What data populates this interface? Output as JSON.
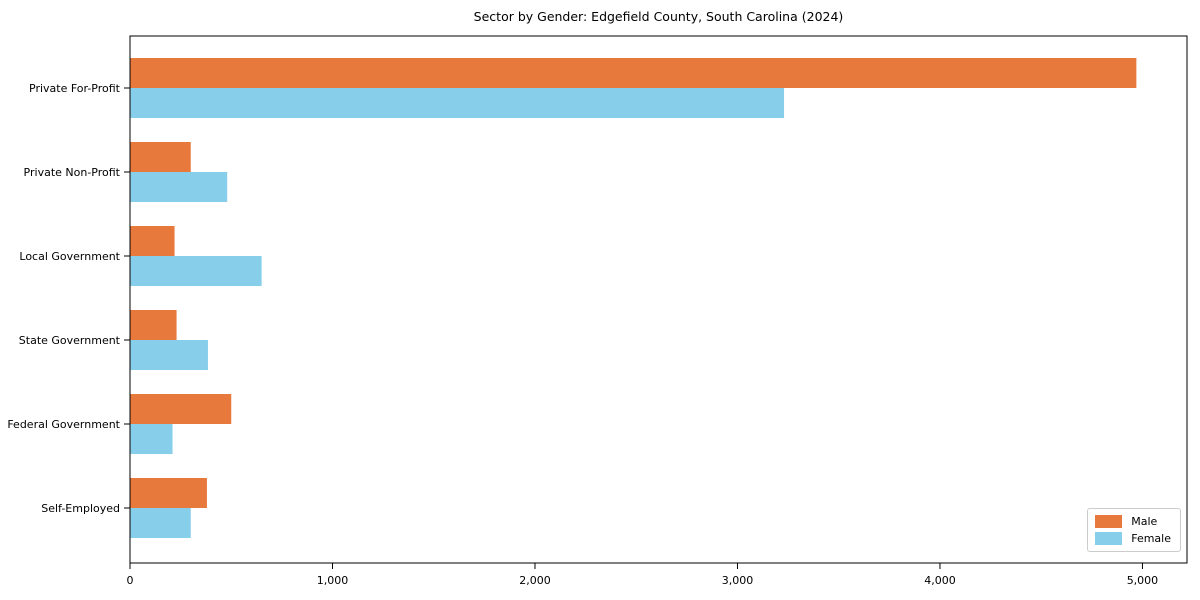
{
  "chart_data": {
    "type": "bar",
    "orientation": "horizontal",
    "title": "Sector by Gender: Edgefield County, South Carolina (2024)",
    "categories": [
      "Private For-Profit",
      "Private Non-Profit",
      "Local Government",
      "State Government",
      "Federal Government",
      "Self-Employed"
    ],
    "series": [
      {
        "name": "Male",
        "color": "#e8793d",
        "values": [
          4970,
          300,
          220,
          230,
          500,
          380
        ]
      },
      {
        "name": "Female",
        "color": "#87ceeb",
        "values": [
          3230,
          480,
          650,
          385,
          210,
          300
        ]
      }
    ],
    "xlabel": "",
    "ylabel": "",
    "xlim": [
      0,
      5220
    ],
    "xticks": [
      0,
      1000,
      2000,
      3000,
      4000,
      5000
    ],
    "xtick_labels": [
      "0",
      "1,000",
      "2,000",
      "3,000",
      "4,000",
      "5,000"
    ],
    "grid": false,
    "legend": {
      "position": "lower right"
    }
  }
}
